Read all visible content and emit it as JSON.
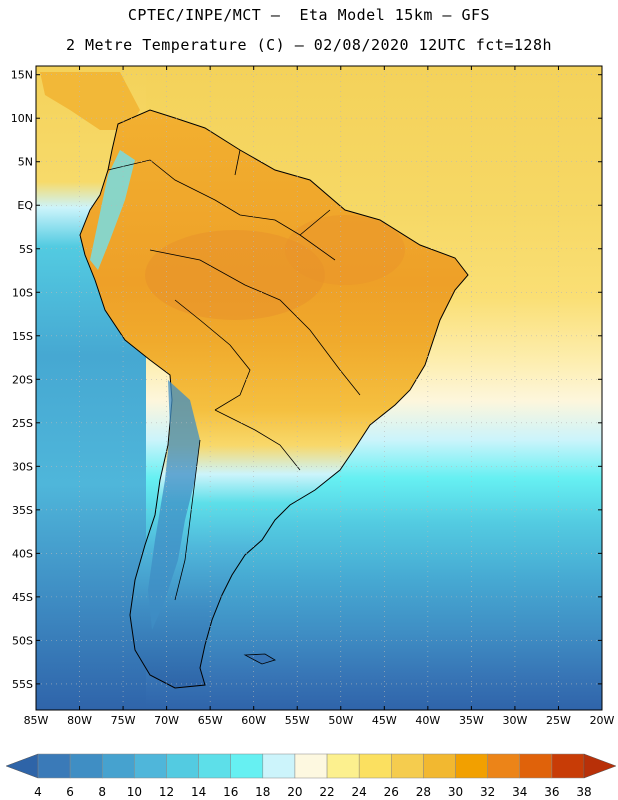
{
  "title": {
    "line1": "CPTEC/INPE/MCT –  Eta Model 15km – GFS",
    "line2": "2 Metre Temperature (C) – 02/08/2020 12UTC fct=128h"
  },
  "map": {
    "latitude_labels": [
      "15N",
      "10N",
      "5N",
      "EQ",
      "5S",
      "10S",
      "15S",
      "20S",
      "25S",
      "30S",
      "35S",
      "40S",
      "45S",
      "50S",
      "55S"
    ],
    "longitude_labels": [
      "85W",
      "80W",
      "75W",
      "70W",
      "65W",
      "60W",
      "55W",
      "50W",
      "45W",
      "40W",
      "35W",
      "30W",
      "25W",
      "20W"
    ],
    "extent": {
      "lon_min": -85,
      "lon_max": -20,
      "lat_min": -58,
      "lat_max": 16
    }
  },
  "colorbar": {
    "values": [
      "4",
      "6",
      "8",
      "10",
      "12",
      "14",
      "16",
      "18",
      "20",
      "22",
      "24",
      "26",
      "28",
      "30",
      "32",
      "34",
      "36",
      "38"
    ],
    "colors": [
      "#3a7ab8",
      "#3f8ec4",
      "#46a2cf",
      "#4fb6da",
      "#53cbe1",
      "#5ddfe9",
      "#66f0f2",
      "#ccf4fb",
      "#fdf8e0",
      "#fcf08e",
      "#fbe060",
      "#f5cc4e",
      "#f2b830",
      "#f2a000",
      "#ec8418",
      "#e0620a",
      "#c83c06",
      "#a82806"
    ],
    "under_color": "#2e64a8",
    "over_color": "#b83008"
  }
}
